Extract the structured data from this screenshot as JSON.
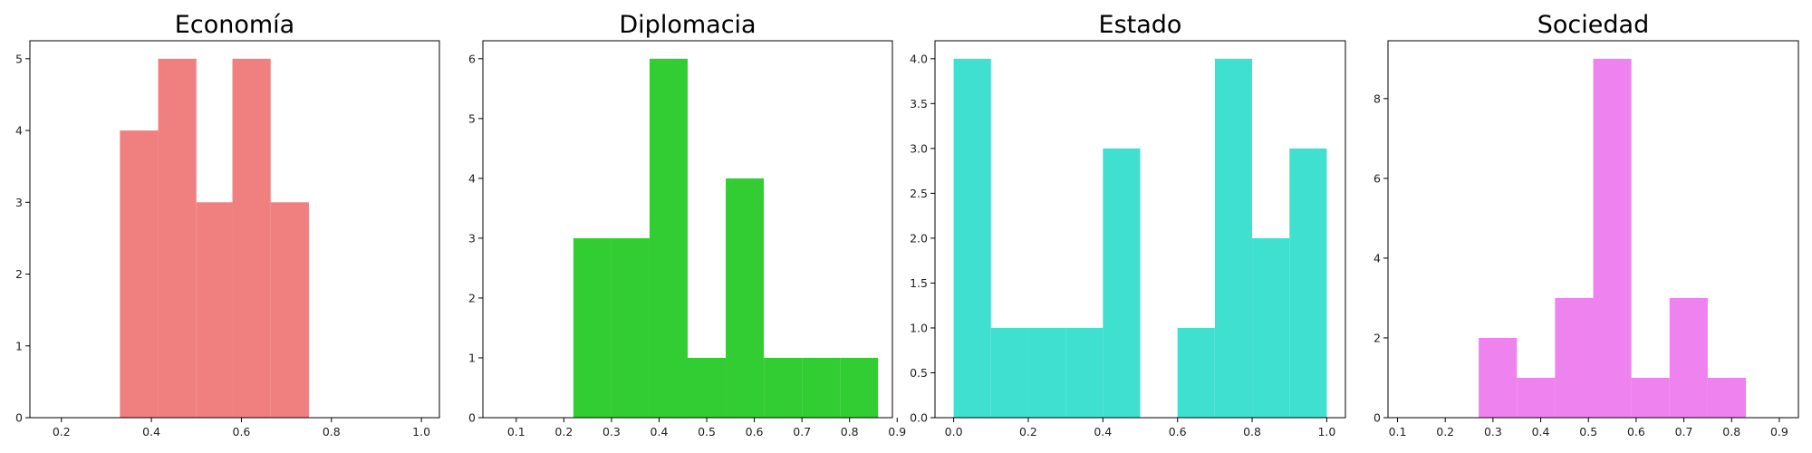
{
  "chart_data": [
    {
      "type": "bar",
      "title": "Economía",
      "color": "#f08080",
      "xlim": [
        0.13,
        1.04
      ],
      "ylim": [
        0,
        5.25
      ],
      "xticks": [
        0.2,
        0.4,
        0.6,
        0.8,
        1.0
      ],
      "xtick_labels": [
        "0.2",
        "0.4",
        "0.6",
        "0.8",
        "1.0"
      ],
      "yticks": [
        0,
        1,
        2,
        3,
        4,
        5
      ],
      "ytick_labels": [
        "0",
        "1",
        "2",
        "3",
        "4",
        "5"
      ],
      "bins": [
        {
          "x0": 0.33,
          "x1": 0.415,
          "value": 4
        },
        {
          "x0": 0.415,
          "x1": 0.5,
          "value": 5
        },
        {
          "x0": 0.5,
          "x1": 0.58,
          "value": 3
        },
        {
          "x0": 0.58,
          "x1": 0.665,
          "value": 5
        },
        {
          "x0": 0.665,
          "x1": 0.75,
          "value": 3
        }
      ]
    },
    {
      "type": "bar",
      "title": "Diplomacia",
      "color": "#32cd32",
      "xlim": [
        0.03,
        0.89
      ],
      "ylim": [
        0,
        6.3
      ],
      "xticks": [
        0.1,
        0.2,
        0.3,
        0.4,
        0.5,
        0.6,
        0.7,
        0.8,
        0.9
      ],
      "xtick_labels": [
        "0.1",
        "0.2",
        "0.3",
        "0.4",
        "0.5",
        "0.6",
        "0.7",
        "0.8",
        "0.9"
      ],
      "yticks": [
        0,
        1,
        2,
        3,
        4,
        5,
        6
      ],
      "ytick_labels": [
        "0",
        "1",
        "2",
        "3",
        "4",
        "5",
        "6"
      ],
      "bins": [
        {
          "x0": 0.22,
          "x1": 0.3,
          "value": 3
        },
        {
          "x0": 0.3,
          "x1": 0.38,
          "value": 3
        },
        {
          "x0": 0.38,
          "x1": 0.46,
          "value": 6
        },
        {
          "x0": 0.46,
          "x1": 0.54,
          "value": 1
        },
        {
          "x0": 0.54,
          "x1": 0.62,
          "value": 4
        },
        {
          "x0": 0.62,
          "x1": 0.7,
          "value": 1
        },
        {
          "x0": 0.7,
          "x1": 0.78,
          "value": 1
        },
        {
          "x0": 0.78,
          "x1": 0.86,
          "value": 1
        }
      ]
    },
    {
      "type": "bar",
      "title": "Estado",
      "color": "#40e0d0",
      "xlim": [
        -0.05,
        1.05
      ],
      "ylim": [
        0,
        4.2
      ],
      "xticks": [
        0.0,
        0.2,
        0.4,
        0.6,
        0.8,
        1.0
      ],
      "xtick_labels": [
        "0.0",
        "0.2",
        "0.4",
        "0.6",
        "0.8",
        "1.0"
      ],
      "yticks": [
        0,
        0.5,
        1.0,
        1.5,
        2.0,
        2.5,
        3.0,
        3.5,
        4.0
      ],
      "ytick_labels": [
        "0.0",
        "0.5",
        "1.0",
        "1.5",
        "2.0",
        "2.5",
        "3.0",
        "3.5",
        "4.0"
      ],
      "bins": [
        {
          "x0": 0.0,
          "x1": 0.1,
          "value": 4
        },
        {
          "x0": 0.1,
          "x1": 0.2,
          "value": 1
        },
        {
          "x0": 0.2,
          "x1": 0.3,
          "value": 1
        },
        {
          "x0": 0.3,
          "x1": 0.4,
          "value": 1
        },
        {
          "x0": 0.4,
          "x1": 0.5,
          "value": 3
        },
        {
          "x0": 0.5,
          "x1": 0.6,
          "value": 0
        },
        {
          "x0": 0.6,
          "x1": 0.7,
          "value": 1
        },
        {
          "x0": 0.7,
          "x1": 0.8,
          "value": 4
        },
        {
          "x0": 0.8,
          "x1": 0.9,
          "value": 2
        },
        {
          "x0": 0.9,
          "x1": 1.0,
          "value": 3
        }
      ]
    },
    {
      "type": "bar",
      "title": "Sociedad",
      "color": "#ee82ee",
      "xlim": [
        0.08,
        0.94
      ],
      "ylim": [
        0,
        9.45
      ],
      "xticks": [
        0.1,
        0.2,
        0.3,
        0.4,
        0.5,
        0.6,
        0.7,
        0.8,
        0.9
      ],
      "xtick_labels": [
        "0.1",
        "0.2",
        "0.3",
        "0.4",
        "0.5",
        "0.6",
        "0.7",
        "0.8",
        "0.9"
      ],
      "yticks": [
        0,
        2,
        4,
        6,
        8
      ],
      "ytick_labels": [
        "0",
        "2",
        "4",
        "6",
        "8"
      ],
      "bins": [
        {
          "x0": 0.27,
          "x1": 0.35,
          "value": 2
        },
        {
          "x0": 0.35,
          "x1": 0.43,
          "value": 1
        },
        {
          "x0": 0.43,
          "x1": 0.51,
          "value": 3
        },
        {
          "x0": 0.51,
          "x1": 0.59,
          "value": 9
        },
        {
          "x0": 0.59,
          "x1": 0.67,
          "value": 1
        },
        {
          "x0": 0.67,
          "x1": 0.75,
          "value": 3
        },
        {
          "x0": 0.75,
          "x1": 0.83,
          "value": 1
        }
      ]
    }
  ]
}
